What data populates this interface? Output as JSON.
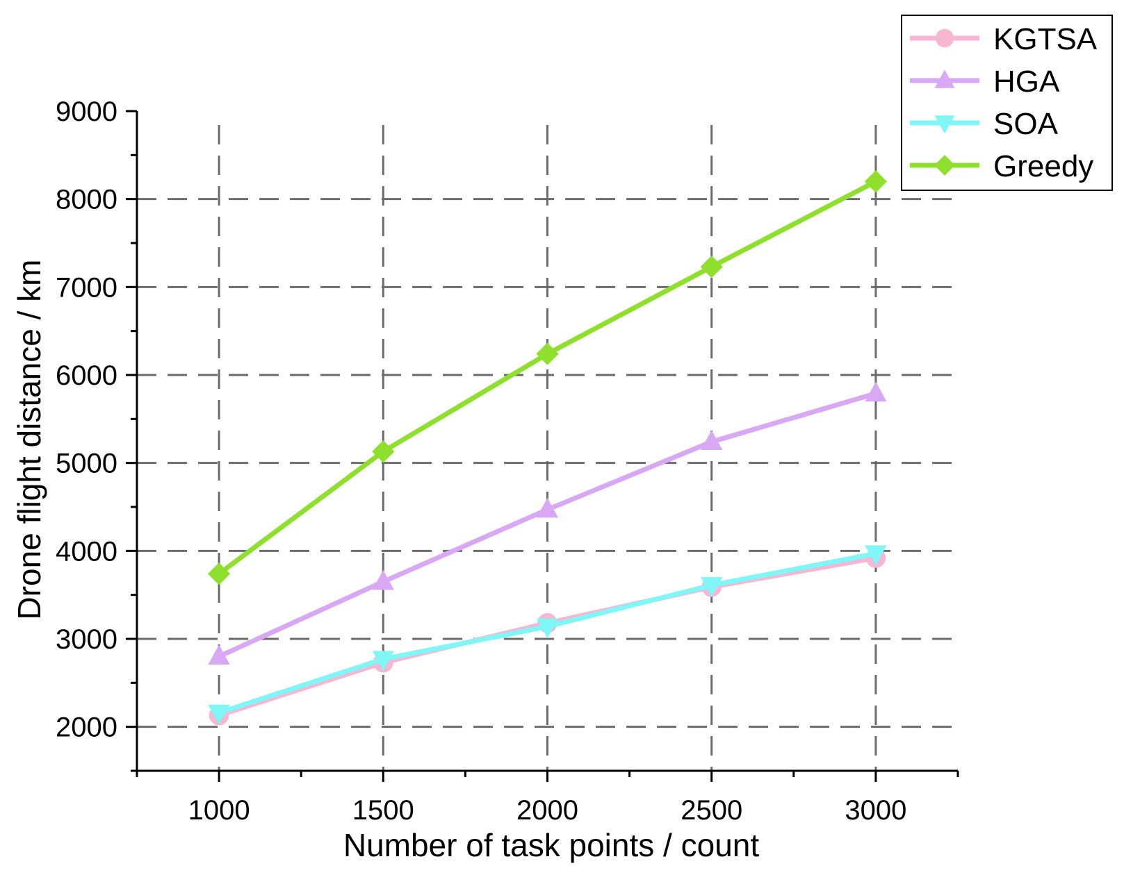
{
  "chart_data": {
    "type": "line",
    "xlabel": "Number of task points / count",
    "ylabel": "Drone flight distance / km",
    "x": [
      1000,
      1500,
      2000,
      2500,
      3000
    ],
    "xlim": [
      750,
      3250
    ],
    "ylim": [
      1500,
      9000
    ],
    "xticks": [
      1000,
      1500,
      2000,
      2500,
      3000
    ],
    "yticks": [
      2000,
      3000,
      4000,
      5000,
      6000,
      7000,
      8000,
      9000
    ],
    "grid": true,
    "legend_position": "top-right",
    "series": [
      {
        "name": "KGTSA",
        "marker": "circle",
        "color": "#f7b6d2",
        "values": [
          2130,
          2730,
          3180,
          3590,
          3920
        ]
      },
      {
        "name": "HGA",
        "marker": "triangle-up",
        "color": "#d8a8f5",
        "values": [
          2800,
          3650,
          4470,
          5240,
          5790
        ]
      },
      {
        "name": "SOA",
        "marker": "triangle-down",
        "color": "#7ff7f7",
        "values": [
          2160,
          2770,
          3140,
          3610,
          3970
        ]
      },
      {
        "name": "Greedy",
        "marker": "diamond",
        "color": "#8ee02c",
        "values": [
          3740,
          5130,
          6240,
          7230,
          8200
        ]
      }
    ]
  }
}
